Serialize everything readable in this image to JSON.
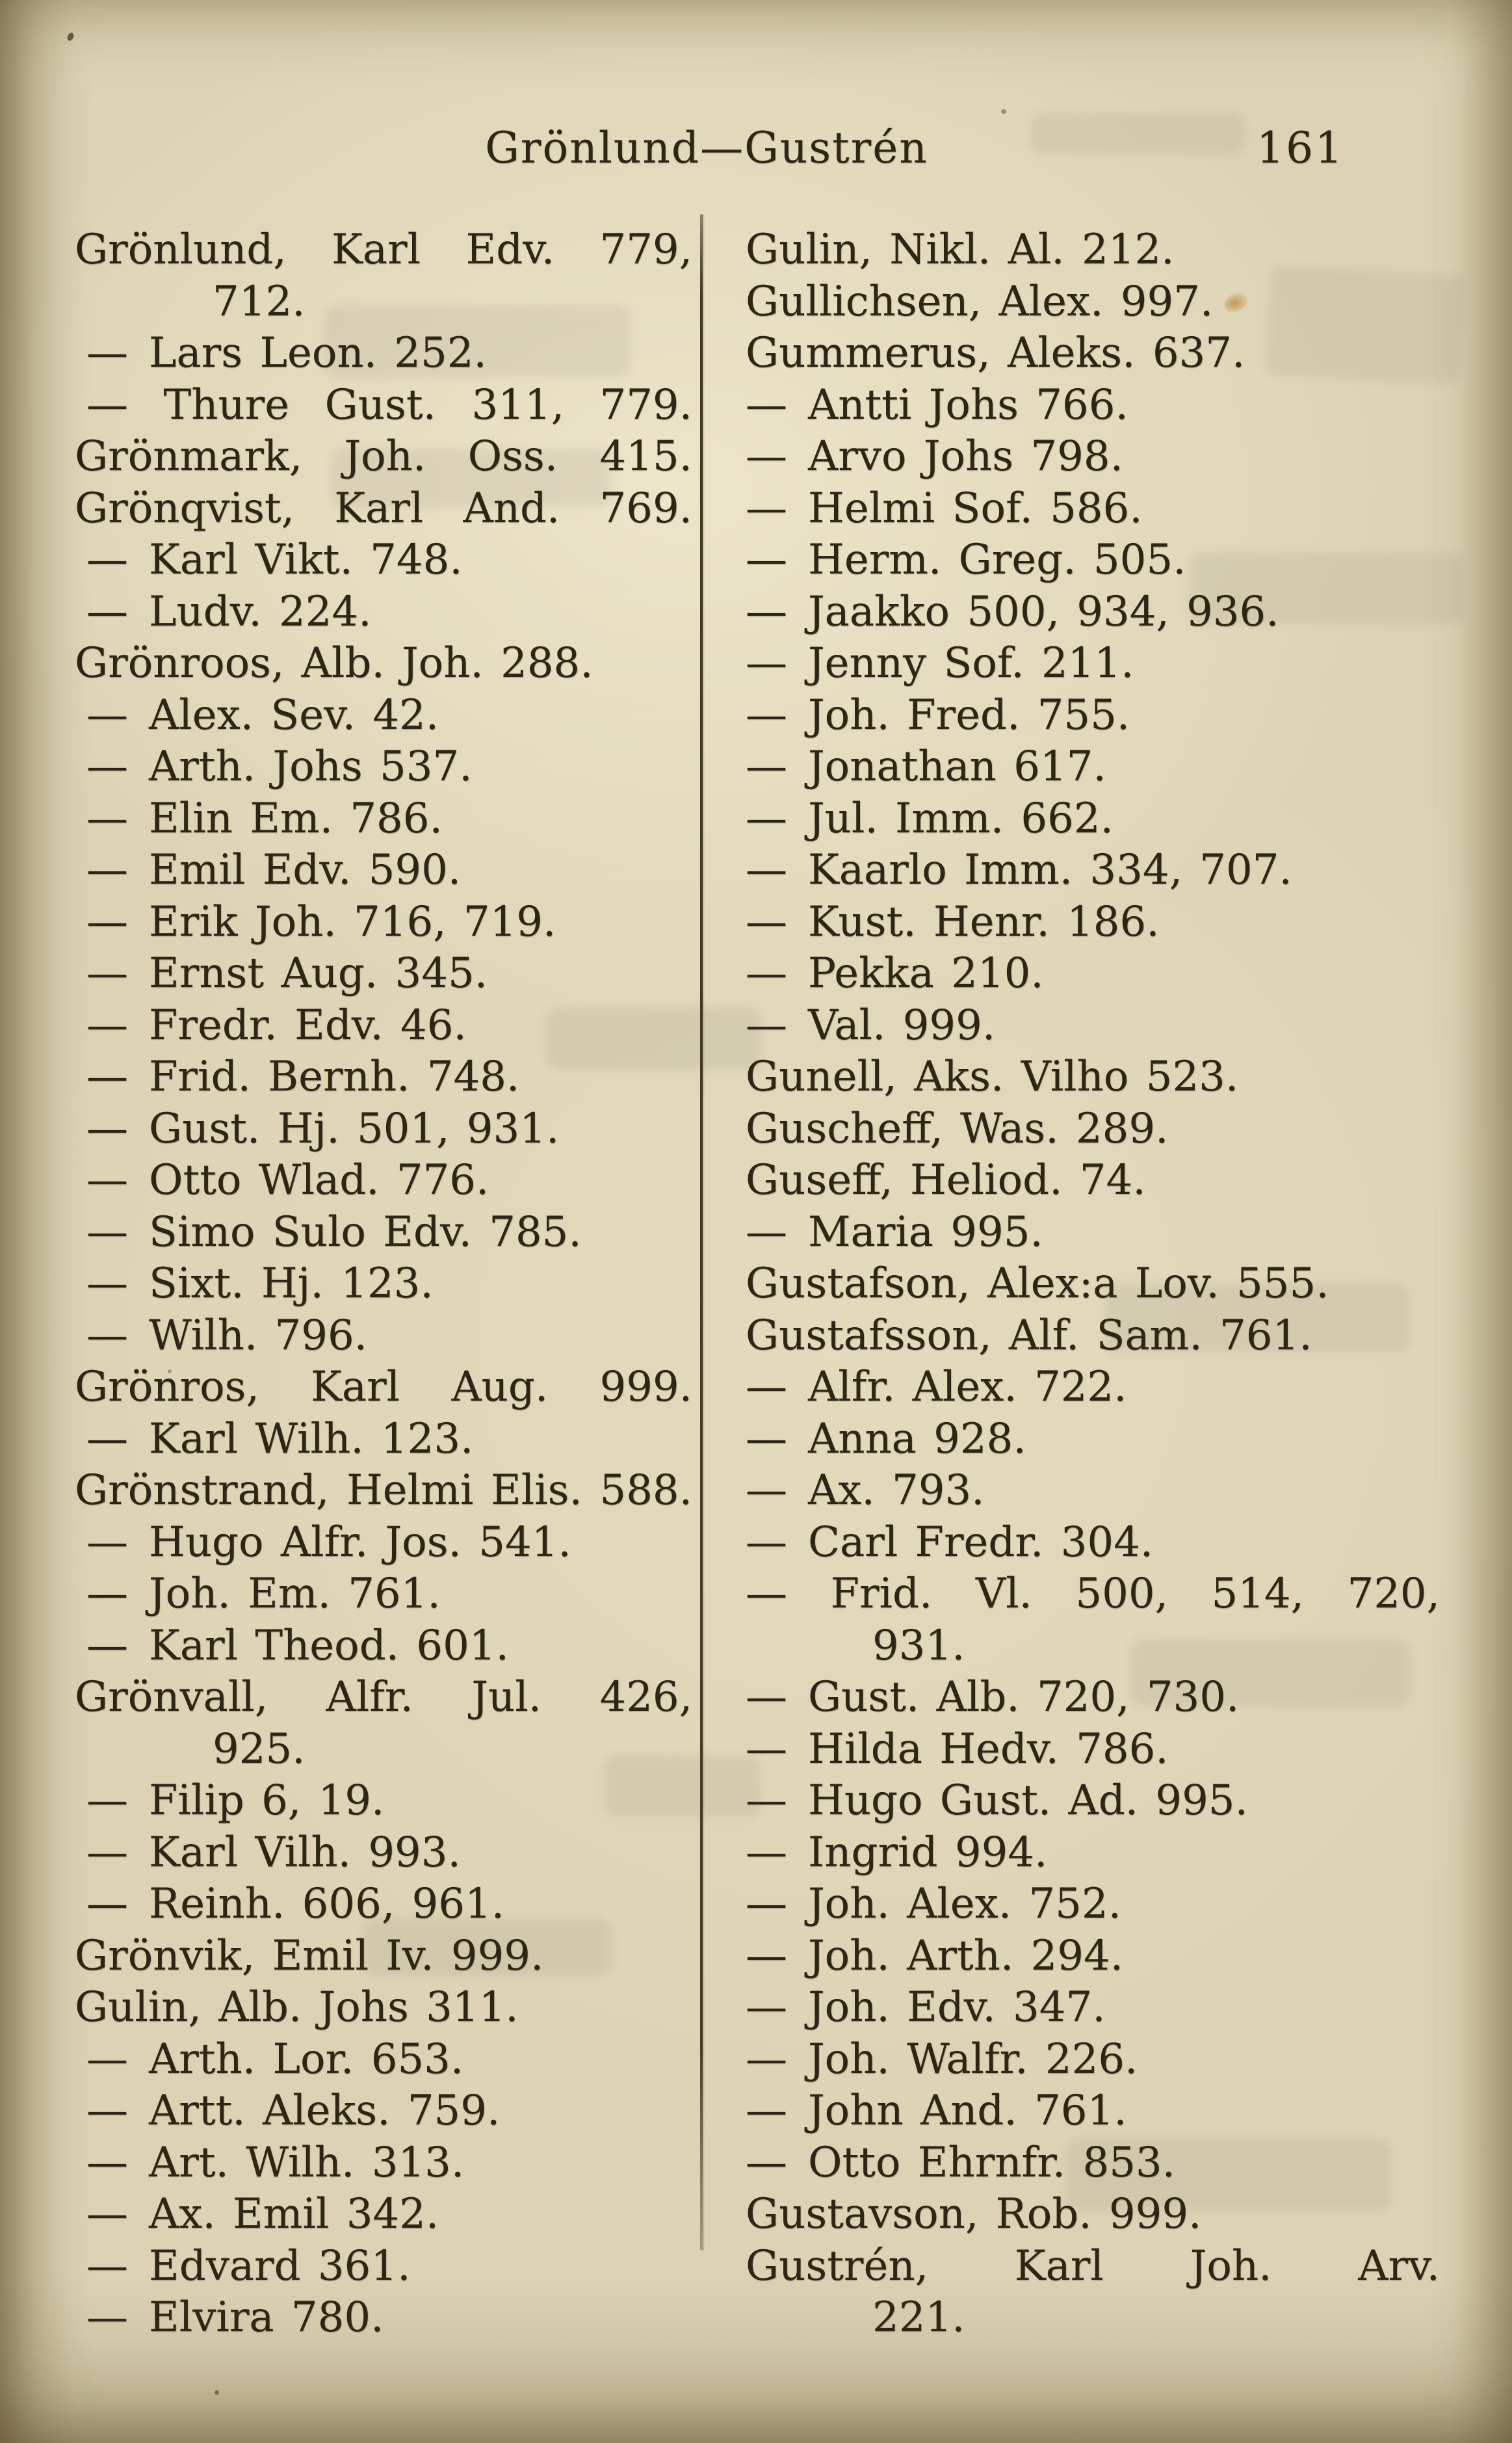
{
  "header": {
    "title": "Grönlund—Gustrén",
    "page_number": "161"
  },
  "colors": {
    "paper": "#ddd3b4",
    "ink": "#2d2516",
    "stain": "#c48c3a"
  },
  "index": {
    "left_column": [
      {
        "dash": false,
        "lines": [
          "Grönlund, Karl Edv. 779,",
          "712."
        ]
      },
      {
        "dash": true,
        "lines": [
          "Lars Leon. 252."
        ]
      },
      {
        "dash": true,
        "j": true,
        "lines": [
          "Thure Gust. 311, 779."
        ]
      },
      {
        "dash": false,
        "j": true,
        "lines": [
          "Grönmark, Joh. Oss. 415."
        ]
      },
      {
        "dash": false,
        "j": true,
        "lines": [
          "Grönqvist, Karl And. 769."
        ]
      },
      {
        "dash": true,
        "lines": [
          "Karl Vikt. 748."
        ]
      },
      {
        "dash": true,
        "lines": [
          "Ludv. 224."
        ]
      },
      {
        "dash": false,
        "lines": [
          "Grönroos, Alb. Joh. 288."
        ]
      },
      {
        "dash": true,
        "lines": [
          "Alex. Sev. 42."
        ]
      },
      {
        "dash": true,
        "lines": [
          "Arth. Johs 537."
        ]
      },
      {
        "dash": true,
        "lines": [
          "Elin Em. 786."
        ]
      },
      {
        "dash": true,
        "lines": [
          "Emil Edv. 590."
        ]
      },
      {
        "dash": true,
        "lines": [
          "Erik Joh. 716, 719."
        ]
      },
      {
        "dash": true,
        "lines": [
          "Ernst Aug. 345."
        ]
      },
      {
        "dash": true,
        "lines": [
          "Fredr. Edv. 46."
        ]
      },
      {
        "dash": true,
        "lines": [
          "Frid. Bernh. 748."
        ]
      },
      {
        "dash": true,
        "lines": [
          "Gust. Hj. 501, 931."
        ]
      },
      {
        "dash": true,
        "lines": [
          "Otto Wlad. 776."
        ]
      },
      {
        "dash": true,
        "lines": [
          "Simo Sulo Edv. 785."
        ]
      },
      {
        "dash": true,
        "lines": [
          "Sixt. Hj. 123."
        ]
      },
      {
        "dash": true,
        "lines": [
          "Wilh. 796."
        ]
      },
      {
        "dash": false,
        "j": true,
        "lines": [
          "Grönros, Karl Aug. 999."
        ]
      },
      {
        "dash": true,
        "lines": [
          "Karl Wilh. 123."
        ]
      },
      {
        "dash": false,
        "j": true,
        "lines": [
          "Grönstrand, Helmi Elis. 588."
        ]
      },
      {
        "dash": true,
        "lines": [
          "Hugo Alfr. Jos. 541."
        ]
      },
      {
        "dash": true,
        "lines": [
          "Joh. Em. 761."
        ]
      },
      {
        "dash": true,
        "lines": [
          "Karl Theod. 601."
        ]
      },
      {
        "dash": false,
        "lines": [
          "Grönvall, Alfr. Jul. 426,",
          "925."
        ]
      },
      {
        "dash": true,
        "lines": [
          "Filip 6, 19."
        ]
      },
      {
        "dash": true,
        "lines": [
          "Karl Vilh. 993."
        ]
      },
      {
        "dash": true,
        "lines": [
          "Reinh. 606, 961."
        ]
      },
      {
        "dash": false,
        "lines": [
          "Grönvik, Emil Iv. 999."
        ]
      },
      {
        "dash": false,
        "lines": [
          "Gulin, Alb. Johs 311."
        ]
      },
      {
        "dash": true,
        "lines": [
          "Arth. Lor. 653."
        ]
      },
      {
        "dash": true,
        "lines": [
          "Artt. Aleks. 759."
        ]
      },
      {
        "dash": true,
        "lines": [
          "Art. Wilh. 313."
        ]
      },
      {
        "dash": true,
        "lines": [
          "Ax. Emil 342."
        ]
      },
      {
        "dash": true,
        "lines": [
          "Edvard 361."
        ]
      },
      {
        "dash": true,
        "lines": [
          "Elvira 780."
        ]
      }
    ],
    "right_column": [
      {
        "dash": false,
        "lines": [
          "Gulin, Nikl. Al. 212."
        ]
      },
      {
        "dash": false,
        "lines": [
          "Gullichsen, Alex. 997."
        ]
      },
      {
        "dash": false,
        "lines": [
          "Gummerus, Aleks. 637."
        ]
      },
      {
        "dash": true,
        "lines": [
          "Antti Johs 766."
        ]
      },
      {
        "dash": true,
        "lines": [
          "Arvo Johs 798."
        ]
      },
      {
        "dash": true,
        "lines": [
          "Helmi Sof. 586."
        ]
      },
      {
        "dash": true,
        "lines": [
          "Herm. Greg. 505."
        ]
      },
      {
        "dash": true,
        "lines": [
          "Jaakko 500, 934, 936."
        ]
      },
      {
        "dash": true,
        "lines": [
          "Jenny Sof. 211."
        ]
      },
      {
        "dash": true,
        "lines": [
          "Joh. Fred. 755."
        ]
      },
      {
        "dash": true,
        "lines": [
          "Jonathan 617."
        ]
      },
      {
        "dash": true,
        "lines": [
          "Jul. Imm. 662."
        ]
      },
      {
        "dash": true,
        "lines": [
          "Kaarlo Imm. 334, 707."
        ]
      },
      {
        "dash": true,
        "lines": [
          "Kust. Henr. 186."
        ]
      },
      {
        "dash": true,
        "lines": [
          "Pekka 210."
        ]
      },
      {
        "dash": true,
        "lines": [
          "Val. 999."
        ]
      },
      {
        "dash": false,
        "lines": [
          "Gunell, Aks. Vilho 523."
        ]
      },
      {
        "dash": false,
        "lines": [
          "Guscheff, Was. 289."
        ]
      },
      {
        "dash": false,
        "lines": [
          "Guseff, Heliod. 74."
        ]
      },
      {
        "dash": true,
        "lines": [
          "Maria 995."
        ]
      },
      {
        "dash": false,
        "lines": [
          "Gustafson, Alex:a Lov. 555."
        ]
      },
      {
        "dash": false,
        "lines": [
          "Gustafsson, Alf. Sam. 761."
        ]
      },
      {
        "dash": true,
        "lines": [
          "Alfr. Alex. 722."
        ]
      },
      {
        "dash": true,
        "lines": [
          "Anna 928."
        ]
      },
      {
        "dash": true,
        "lines": [
          "Ax. 793."
        ]
      },
      {
        "dash": true,
        "lines": [
          "Carl Fredr. 304."
        ]
      },
      {
        "dash": true,
        "lines": [
          "Frid. Vl. 500, 514, 720,",
          "931."
        ]
      },
      {
        "dash": true,
        "lines": [
          "Gust. Alb. 720, 730."
        ]
      },
      {
        "dash": true,
        "lines": [
          "Hilda Hedv. 786."
        ]
      },
      {
        "dash": true,
        "lines": [
          "Hugo Gust. Ad. 995."
        ]
      },
      {
        "dash": true,
        "lines": [
          "Ingrid 994."
        ]
      },
      {
        "dash": true,
        "lines": [
          "Joh. Alex. 752."
        ]
      },
      {
        "dash": true,
        "lines": [
          "Joh. Arth. 294."
        ]
      },
      {
        "dash": true,
        "lines": [
          "Joh. Edv. 347."
        ]
      },
      {
        "dash": true,
        "lines": [
          "Joh. Walfr. 226."
        ]
      },
      {
        "dash": true,
        "lines": [
          "John And. 761."
        ]
      },
      {
        "dash": true,
        "lines": [
          "Otto Ehrnfr. 853."
        ]
      },
      {
        "dash": false,
        "lines": [
          "Gustavson, Rob. 999."
        ]
      },
      {
        "dash": false,
        "lines": [
          "Gustrén, Karl Joh. Arv.",
          "221."
        ]
      }
    ]
  }
}
